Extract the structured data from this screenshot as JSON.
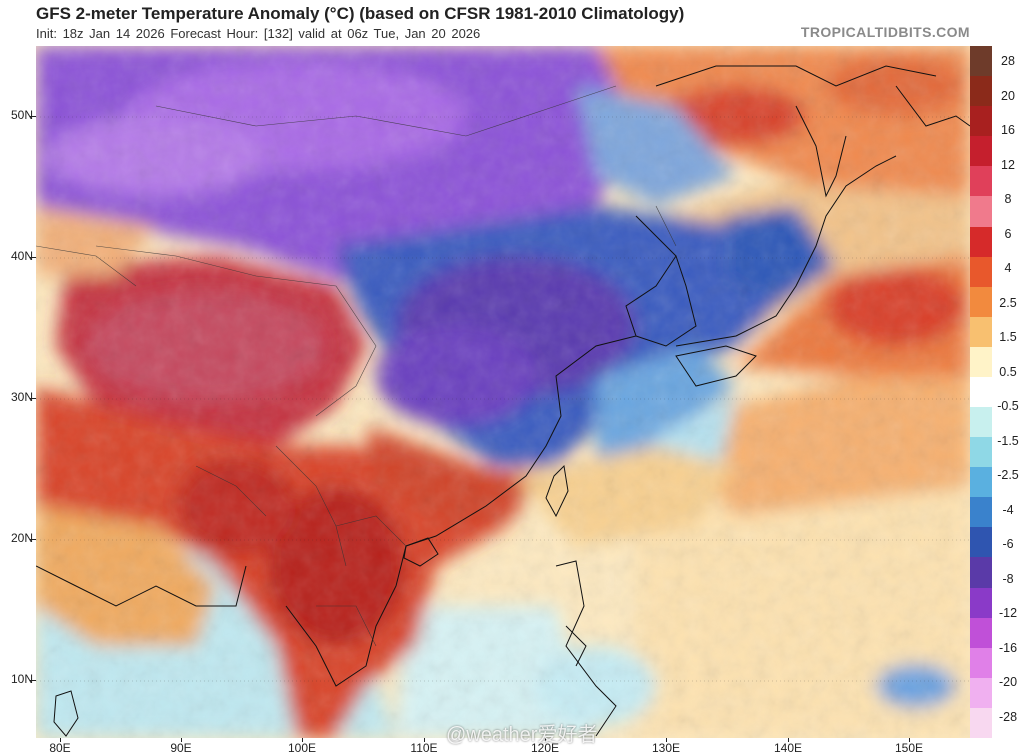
{
  "header": {
    "title": "GFS 2-meter Temperature Anomaly (°C) (based on CFSR 1981-2010 Climatology)",
    "subtitle": "Init: 18z Jan 14 2026   Forecast Hour: [132]   valid at 06z Tue, Jan 20 2026",
    "site": "TROPICALTIDBITS.COM"
  },
  "axes": {
    "latitudes": [
      "50N",
      "40N",
      "30N",
      "20N",
      "10N"
    ],
    "longitudes": [
      "80E",
      "90E",
      "100E",
      "110E",
      "120E",
      "130E",
      "140E",
      "150E"
    ]
  },
  "colorbar": {
    "labels": [
      "28",
      "20",
      "16",
      "12",
      "8",
      "6",
      "4",
      "2.5",
      "1.5",
      "0.5",
      "-0.5",
      "-1.5",
      "-2.5",
      "-4",
      "-6",
      "-8",
      "-12",
      "-16",
      "-20",
      "-28"
    ],
    "colors": [
      "#6e3b2a",
      "#8b2a1a",
      "#a8201f",
      "#c51f2d",
      "#e0405a",
      "#f07a8c",
      "#d62a2a",
      "#e8582c",
      "#f28a3e",
      "#f8c070",
      "#fff3c8",
      "#ffffff",
      "#c8f0ee",
      "#8fd8e6",
      "#5ab0e0",
      "#3a82cc",
      "#2f55b0",
      "#5a3aa8",
      "#8a3ac8",
      "#c050d8",
      "#e080e8",
      "#f0b0f0",
      "#f8d8f0"
    ]
  },
  "watermark": {
    "text": "@weather爱好者"
  },
  "map_legend": {
    "icons": [
      "coastline-lines",
      "border-lines"
    ]
  }
}
